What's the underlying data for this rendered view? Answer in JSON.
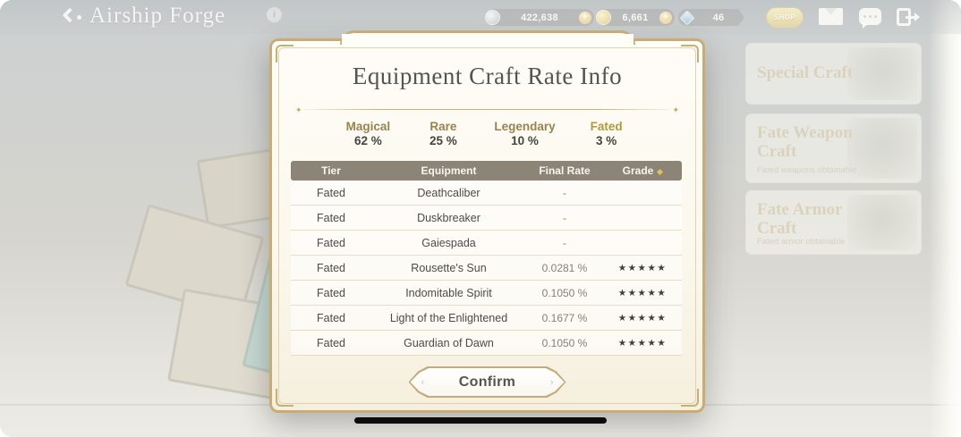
{
  "colors": {
    "accent_gold": "#c7ac76",
    "table_header_bg": "#8b8477",
    "rate_label_gold": "#97834d",
    "fated_gold": "#b09a3c",
    "star_color": "#3f3d38",
    "dialog_bg": "#fdfaf1"
  },
  "topbar": {
    "title": "Airship Forge",
    "info_icon": "i",
    "currencies": [
      {
        "name": "silver-coin",
        "value": "422,638",
        "plus": "+"
      },
      {
        "name": "gold-coin",
        "value": "6,661",
        "plus": "+"
      },
      {
        "name": "blue-gem",
        "value": "46"
      }
    ],
    "shop_label": "SHOP"
  },
  "side_panel": {
    "cards": [
      {
        "title": "Special Craft",
        "subtitle": ""
      },
      {
        "title": "Fate Weapon Craft",
        "subtitle": "Fated weapons obtainable"
      },
      {
        "title": "Fate Armor Craft",
        "subtitle": "Fated armor obtainable"
      }
    ]
  },
  "dialog": {
    "title": "Equipment Craft Rate Info",
    "divider_ornament": "✦",
    "rates": [
      {
        "label": "Magical",
        "value": "62 %"
      },
      {
        "label": "Rare",
        "value": "25 %"
      },
      {
        "label": "Legendary",
        "value": "10 %"
      },
      {
        "label": "Fated",
        "value": "3 %"
      }
    ],
    "table": {
      "headers": [
        "Tier",
        "Equipment",
        "Final Rate",
        "Grade"
      ],
      "rows": [
        {
          "tier": "Fated",
          "equipment": "Deathcaliber",
          "final_rate": "-",
          "grade": ""
        },
        {
          "tier": "Fated",
          "equipment": "Duskbreaker",
          "final_rate": "-",
          "grade": ""
        },
        {
          "tier": "Fated",
          "equipment": "Gaiespada",
          "final_rate": "-",
          "grade": ""
        },
        {
          "tier": "Fated",
          "equipment": "Rousette's Sun",
          "final_rate": "0.0281 %",
          "grade": "★★★★★"
        },
        {
          "tier": "Fated",
          "equipment": "Indomitable Spirit",
          "final_rate": "0.1050 %",
          "grade": "★★★★★"
        },
        {
          "tier": "Fated",
          "equipment": "Light of the Enlightened",
          "final_rate": "0.1677 %",
          "grade": "★★★★★"
        },
        {
          "tier": "Fated",
          "equipment": "Guardian of Dawn",
          "final_rate": "0.1050 %",
          "grade": "★★★★★"
        }
      ]
    },
    "confirm_label": "Confirm",
    "confirm_chevron_left": "‹",
    "confirm_chevron_right": "›"
  }
}
